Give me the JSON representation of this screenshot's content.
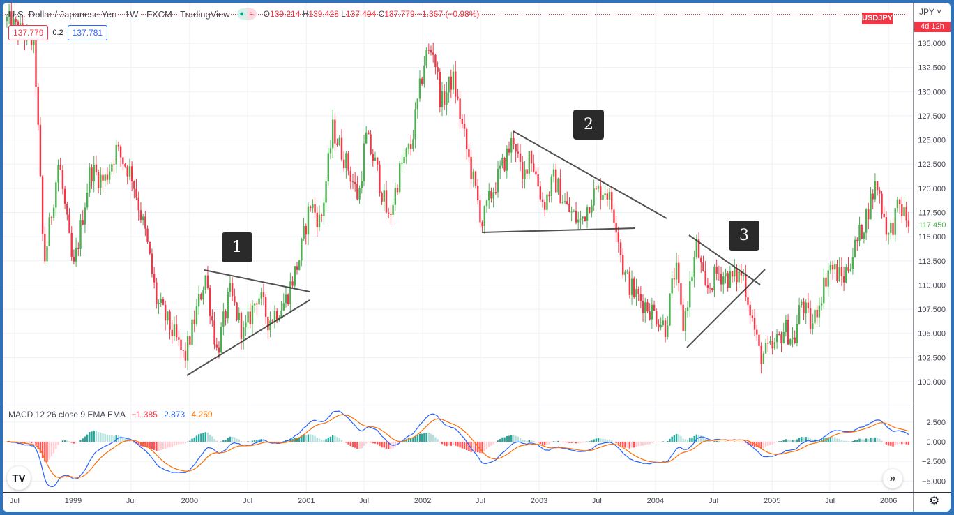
{
  "header": {
    "title": "U.S. Dollar / Japanese Yen · 1W · FXCM · TradingView",
    "open_label": "O",
    "open": "139.214",
    "high_label": "H",
    "high": "139.428",
    "low_label": "L",
    "low": "137.494",
    "close_label": "C",
    "close": "137.779",
    "change": "−1.367 (−0.98%)",
    "market_status_icon": "dot-icon",
    "replay_icon": "wave-icon"
  },
  "quote": {
    "bid": "137.779",
    "spread": "0.2",
    "ask": "137.781"
  },
  "price_axis": {
    "currency": "JPY",
    "symbol_tag": "USDJPY",
    "countdown": "4d 12h",
    "last_visible_price": "117.450"
  },
  "macd": {
    "label": "MACD 12 26 close 9 EMA EMA",
    "histogram": "−1.385",
    "macd": "2.873",
    "signal": "4.259"
  },
  "colors": {
    "up": "#4caf50",
    "down": "#f23645",
    "macd_line": "#2962ff",
    "signal_line": "#ff6d00",
    "frame": "#2f72b8"
  },
  "annotations": [
    "1",
    "2",
    "3"
  ],
  "chart_data": [
    {
      "type": "candlestick",
      "interval": "1W",
      "title": "U.S. Dollar / Japanese Yen",
      "y_ticks": [
        "100.000",
        "102.500",
        "105.000",
        "107.500",
        "110.000",
        "112.500",
        "115.000",
        "117.500",
        "120.000",
        "122.500",
        "125.000",
        "127.500",
        "130.000",
        "132.500",
        "135.000"
      ],
      "ylim": [
        97.5,
        139.5
      ],
      "x_ticks": [
        {
          "label": "Jul",
          "date": "1998-07-01"
        },
        {
          "label": "1999",
          "date": "1999-01-01"
        },
        {
          "label": "Jul",
          "date": "1999-07-01"
        },
        {
          "label": "2000",
          "date": "2000-01-01"
        },
        {
          "label": "Jul",
          "date": "2000-07-01"
        },
        {
          "label": "2001",
          "date": "2001-01-01"
        },
        {
          "label": "Jul",
          "date": "2001-07-01"
        },
        {
          "label": "2002",
          "date": "2002-01-01"
        },
        {
          "label": "Jul",
          "date": "2002-07-01"
        },
        {
          "label": "2003",
          "date": "2003-01-01"
        },
        {
          "label": "Jul",
          "date": "2003-07-01"
        },
        {
          "label": "2004",
          "date": "2004-01-01"
        },
        {
          "label": "Jul",
          "date": "2004-07-01"
        },
        {
          "label": "2005",
          "date": "2005-01-01"
        },
        {
          "label": "Jul",
          "date": "2005-07-01"
        },
        {
          "label": "2006",
          "date": "2006-01-01"
        }
      ],
      "grid": true,
      "approx_close_path": [
        [
          "1998-06-07",
          137.3
        ],
        [
          "1998-09-01",
          135.0
        ],
        [
          "1998-10-01",
          112.0
        ],
        [
          "1998-11-17",
          122.9
        ],
        [
          "1999-01-01",
          111.3
        ],
        [
          "1999-02-24",
          122.0
        ],
        [
          "1999-04-08",
          120.7
        ],
        [
          "1999-05-16",
          124.0
        ],
        [
          "1999-07-04",
          121.4
        ],
        [
          "1999-08-17",
          115.0
        ],
        [
          "1999-09-19",
          108.4
        ],
        [
          "1999-11-13",
          104.8
        ],
        [
          "1999-12-16",
          102.3
        ],
        [
          "2000-02-20",
          111.0
        ],
        [
          "2000-03-27",
          103.0
        ],
        [
          "2000-05-06",
          109.2
        ],
        [
          "2000-06-19",
          104.8
        ],
        [
          "2000-08-02",
          109.2
        ],
        [
          "2000-09-04",
          106.3
        ],
        [
          "2000-10-28",
          108.4
        ],
        [
          "2000-12-11",
          112.8
        ],
        [
          "2001-01-13",
          118.5
        ],
        [
          "2001-02-15",
          116.4
        ],
        [
          "2001-03-25",
          126.1
        ],
        [
          "2001-05-12",
          122.2
        ],
        [
          "2001-06-14",
          118.9
        ],
        [
          "2001-07-06",
          125.4
        ],
        [
          "2001-08-08",
          122.2
        ],
        [
          "2001-09-16",
          116.7
        ],
        [
          "2001-10-24",
          122.2
        ],
        [
          "2001-11-25",
          124.3
        ],
        [
          "2002-01-09",
          133.7
        ],
        [
          "2002-02-04",
          134.4
        ],
        [
          "2002-02-28",
          128.6
        ],
        [
          "2002-04-05",
          131.5
        ],
        [
          "2002-05-19",
          124.0
        ],
        [
          "2002-07-07",
          116.4
        ],
        [
          "2002-08-03",
          119.3
        ],
        [
          "2002-09-16",
          122.9
        ],
        [
          "2002-10-15",
          125.4
        ],
        [
          "2002-11-10",
          120.4
        ],
        [
          "2002-12-02",
          124.0
        ],
        [
          "2003-01-15",
          118.2
        ],
        [
          "2003-02-17",
          121.0
        ],
        [
          "2003-04-01",
          117.8
        ],
        [
          "2003-05-10",
          116.4
        ],
        [
          "2003-06-16",
          119.3
        ],
        [
          "2003-07-30",
          120.0
        ],
        [
          "2003-09-01",
          116.4
        ],
        [
          "2003-09-23",
          111.3
        ],
        [
          "2003-10-25",
          109.2
        ],
        [
          "2003-12-31",
          107.0
        ],
        [
          "2004-02-02",
          105.6
        ],
        [
          "2004-03-04",
          112.0
        ],
        [
          "2004-03-27",
          105.6
        ],
        [
          "2004-05-10",
          114.2
        ],
        [
          "2004-06-05",
          109.2
        ],
        [
          "2004-07-14",
          111.3
        ],
        [
          "2004-08-28",
          110.6
        ],
        [
          "2004-09-30",
          111.3
        ],
        [
          "2004-11-01",
          106.3
        ],
        [
          "2004-11-23",
          102.7
        ],
        [
          "2005-01-06",
          103.4
        ],
        [
          "2005-02-09",
          105.6
        ],
        [
          "2005-03-11",
          104.1
        ],
        [
          "2005-04-02",
          108.4
        ],
        [
          "2005-05-05",
          105.6
        ],
        [
          "2005-06-29",
          112.0
        ],
        [
          "2005-08-12",
          110.6
        ],
        [
          "2005-10-16",
          116.4
        ],
        [
          "2005-11-24",
          120.7
        ],
        [
          "2006-01-01",
          115.0
        ],
        [
          "2006-02-03",
          118.2
        ],
        [
          "2006-03-07",
          116.4
        ]
      ]
    },
    {
      "type": "macd",
      "params": {
        "fast": 12,
        "slow": 26,
        "signal": 9,
        "source": "close"
      },
      "y_ticks": [
        "2.500",
        "0.000",
        "−2.500",
        "−5.000"
      ],
      "ylim": [
        -6,
        3.5
      ]
    }
  ]
}
